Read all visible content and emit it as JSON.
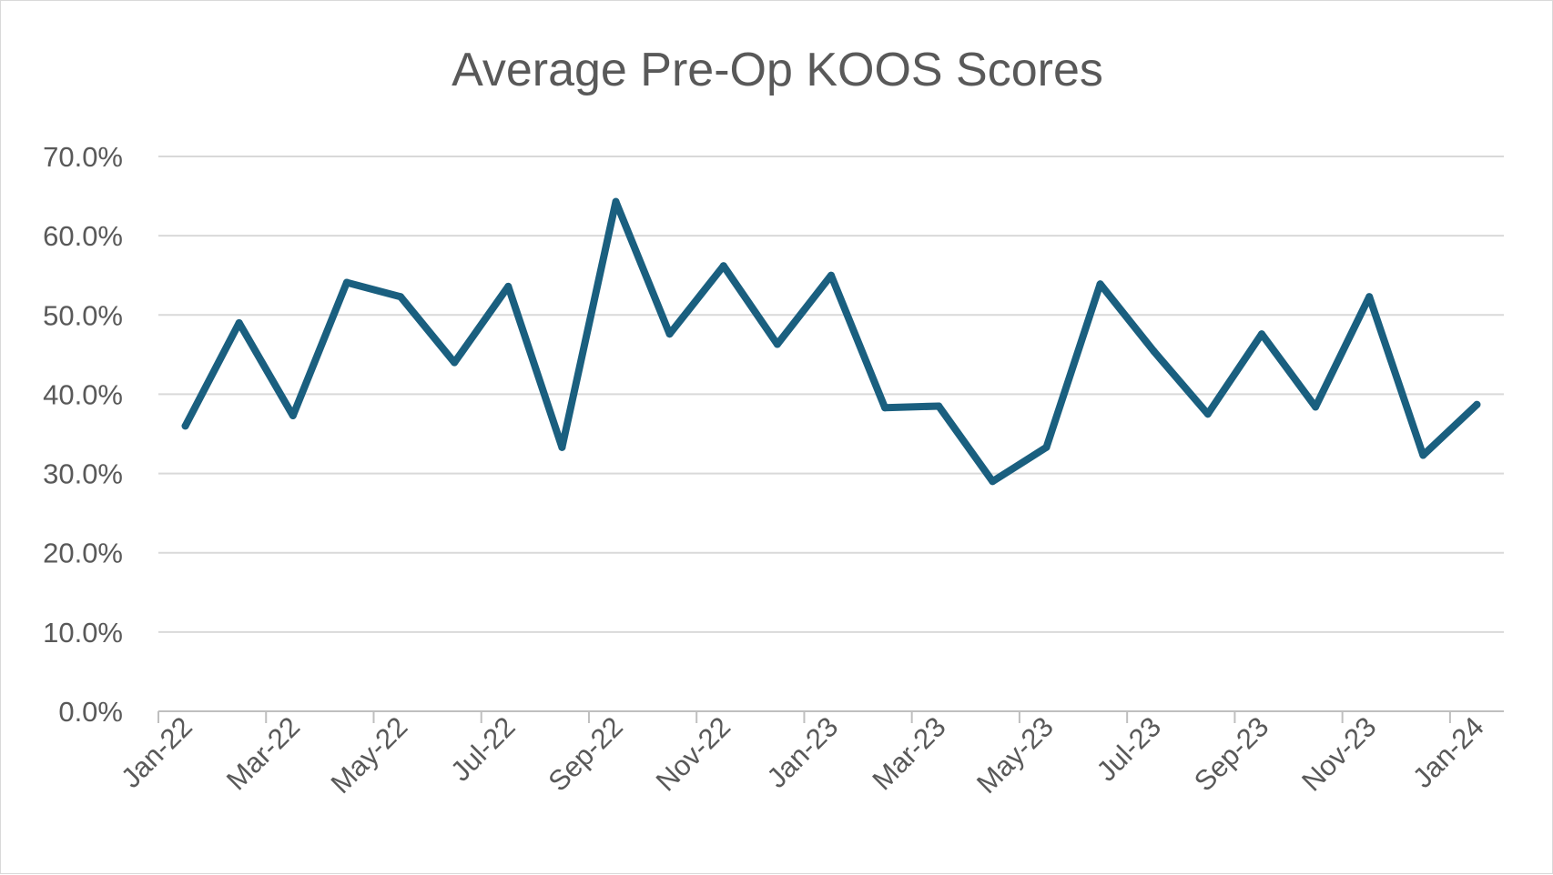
{
  "chart_data": {
    "type": "line",
    "title": "Average Pre-Op KOOS Scores",
    "xlabel": "",
    "ylabel": "",
    "ylim": [
      0,
      70
    ],
    "ytick_values": [
      0,
      10,
      20,
      30,
      40,
      50,
      60,
      70
    ],
    "ytick_labels": [
      "0.0%",
      "10.0%",
      "20.0%",
      "30.0%",
      "40.0%",
      "50.0%",
      "60.0%",
      "70.0%"
    ],
    "xtick_labels": [
      "Jan-22",
      "Mar-22",
      "May-22",
      "Jul-22",
      "Sep-22",
      "Nov-22",
      "Jan-23",
      "Mar-23",
      "May-23",
      "Jul-23",
      "Sep-23",
      "Nov-23",
      "Jan-24"
    ],
    "grid": true,
    "series": [
      {
        "name": "Average Pre-Op KOOS Score",
        "color": "#1a5f7f",
        "x": [
          "Jan-22",
          "Feb-22",
          "Mar-22",
          "Apr-22",
          "May-22",
          "Jun-22",
          "Jul-22",
          "Aug-22",
          "Sep-22",
          "Oct-22",
          "Nov-22",
          "Dec-22",
          "Jan-23",
          "Feb-23",
          "Mar-23",
          "Apr-23",
          "May-23",
          "Jun-23",
          "Jul-23",
          "Aug-23",
          "Sep-23",
          "Oct-23",
          "Nov-23",
          "Dec-23",
          "Jan-24"
        ],
        "values": [
          36.0,
          49.0,
          37.3,
          54.1,
          52.3,
          44.0,
          53.6,
          33.3,
          64.3,
          47.6,
          56.2,
          46.3,
          55.0,
          38.3,
          38.5,
          29.0,
          33.3,
          53.9,
          45.4,
          37.5,
          47.6,
          38.4,
          52.3,
          32.3,
          38.7
        ]
      }
    ],
    "colors": {
      "gridline": "#d9d9d9",
      "axis": "#bfbfbf",
      "text": "#595959",
      "line": "#1a5f7f"
    }
  }
}
